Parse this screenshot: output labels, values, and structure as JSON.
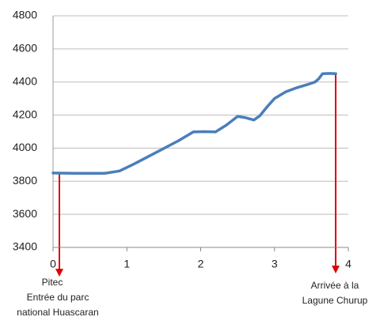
{
  "chart_data": {
    "type": "line",
    "x": [
      0,
      0.3,
      0.7,
      0.9,
      1.1,
      1.4,
      1.7,
      1.9,
      2.05,
      2.2,
      2.35,
      2.5,
      2.6,
      2.72,
      2.8,
      2.9,
      3.0,
      3.15,
      3.3,
      3.45,
      3.55,
      3.6,
      3.65,
      3.75,
      3.83
    ],
    "series": [
      {
        "color": "#4a7ebb",
        "values": [
          3850,
          3848,
          3848,
          3862,
          3905,
          3975,
          4045,
          4098,
          4100,
          4098,
          4140,
          4192,
          4185,
          4170,
          4195,
          4250,
          4300,
          4340,
          4365,
          4385,
          4400,
          4420,
          4450,
          4452,
          4450
        ]
      }
    ],
    "xlim": [
      0,
      4
    ],
    "xticks": [
      0,
      1,
      2,
      3,
      4
    ],
    "ylim": [
      3400,
      4800
    ],
    "yticks": [
      3400,
      3600,
      3800,
      4000,
      4200,
      4400,
      4600,
      4800
    ],
    "grid": true,
    "annotations": [
      {
        "lines": [
          "Pitec",
          "Entrée du parc",
          "national Huascaran"
        ]
      },
      {
        "lines": [
          "Arrivée à la",
          "Lagune Churup"
        ]
      }
    ]
  }
}
